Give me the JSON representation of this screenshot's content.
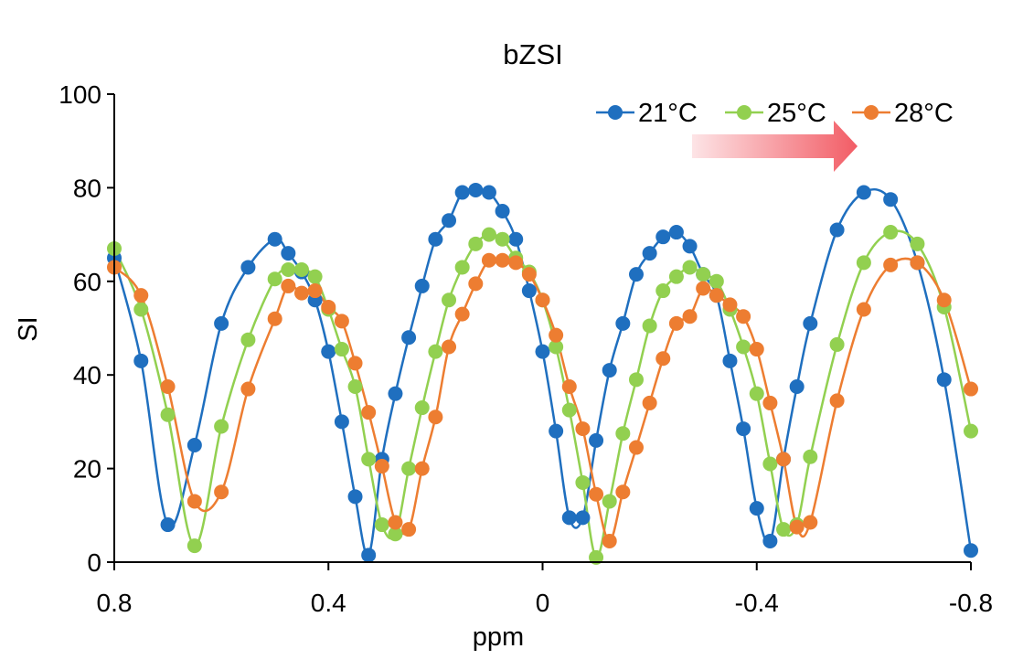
{
  "chart_data": {
    "type": "line",
    "title": "bZSI",
    "xlabel": "ppm",
    "ylabel": "SI",
    "xlim": [
      0.8,
      -0.8
    ],
    "ylim": [
      0,
      100
    ],
    "x_ticks": [
      "0.8",
      "0.4",
      "0",
      "-0.4",
      "-0.8"
    ],
    "y_ticks": [
      "0",
      "20",
      "40",
      "60",
      "80",
      "100"
    ],
    "x_reversed": true,
    "grid": false,
    "legend_position": "top-right",
    "annotation": "shift-arrow",
    "series": [
      {
        "name": "21°C",
        "color": "#1f6fbf",
        "x": [
          0.8,
          0.75,
          0.7,
          0.65,
          0.6,
          0.55,
          0.5,
          0.475,
          0.45,
          0.425,
          0.4,
          0.375,
          0.35,
          0.325,
          0.3,
          0.275,
          0.25,
          0.225,
          0.2,
          0.175,
          0.15,
          0.125,
          0.1,
          0.075,
          0.05,
          0.025,
          0.0,
          -0.025,
          -0.05,
          -0.075,
          -0.1,
          -0.125,
          -0.15,
          -0.175,
          -0.2,
          -0.225,
          -0.25,
          -0.275,
          -0.3,
          -0.325,
          -0.35,
          -0.375,
          -0.4,
          -0.425,
          -0.45,
          -0.475,
          -0.5,
          -0.55,
          -0.6,
          -0.65,
          -0.7,
          -0.75,
          -0.8
        ],
        "y": [
          65,
          43,
          8,
          25,
          51,
          63,
          69,
          66,
          62,
          56,
          45,
          30,
          14,
          1.5,
          22,
          36,
          48,
          59,
          69,
          73,
          79,
          79.5,
          79,
          75,
          69,
          58,
          45,
          28,
          9.5,
          9.5,
          26,
          41,
          51,
          61.5,
          66,
          69.5,
          70.5,
          67.5,
          61.5,
          57,
          43,
          28.5,
          11.5,
          4.5,
          22,
          37.5,
          51,
          71,
          79,
          77.5,
          64,
          39,
          2.5
        ]
      },
      {
        "name": "25°C",
        "color": "#92d050",
        "x": [
          0.8,
          0.75,
          0.7,
          0.65,
          0.6,
          0.55,
          0.5,
          0.475,
          0.45,
          0.425,
          0.4,
          0.375,
          0.35,
          0.325,
          0.3,
          0.275,
          0.25,
          0.225,
          0.2,
          0.175,
          0.15,
          0.125,
          0.1,
          0.075,
          0.05,
          0.025,
          0.0,
          -0.025,
          -0.05,
          -0.075,
          -0.1,
          -0.125,
          -0.15,
          -0.175,
          -0.2,
          -0.225,
          -0.25,
          -0.275,
          -0.3,
          -0.325,
          -0.35,
          -0.375,
          -0.4,
          -0.425,
          -0.45,
          -0.475,
          -0.5,
          -0.55,
          -0.6,
          -0.65,
          -0.7,
          -0.75,
          -0.8
        ],
        "y": [
          67,
          54,
          31.5,
          3.5,
          29,
          47.5,
          60.5,
          62.5,
          62.5,
          61,
          54,
          45.5,
          37.5,
          22,
          8,
          6,
          20,
          33,
          45,
          56,
          63,
          68,
          70,
          69,
          65,
          62,
          56,
          46,
          32.5,
          17,
          1,
          13,
          27.5,
          39,
          50.5,
          58,
          61,
          63,
          61.5,
          60,
          54,
          46,
          36,
          21,
          7,
          8,
          22.5,
          46.5,
          64,
          70.5,
          68,
          54.5,
          28
        ]
      },
      {
        "name": "28°C",
        "color": "#ed7d31",
        "x": [
          0.8,
          0.75,
          0.7,
          0.65,
          0.6,
          0.55,
          0.5,
          0.475,
          0.45,
          0.425,
          0.4,
          0.375,
          0.35,
          0.325,
          0.3,
          0.275,
          0.25,
          0.225,
          0.2,
          0.175,
          0.15,
          0.125,
          0.1,
          0.075,
          0.05,
          0.025,
          0.0,
          -0.025,
          -0.05,
          -0.075,
          -0.1,
          -0.125,
          -0.15,
          -0.175,
          -0.2,
          -0.225,
          -0.25,
          -0.275,
          -0.3,
          -0.325,
          -0.35,
          -0.375,
          -0.4,
          -0.425,
          -0.45,
          -0.475,
          -0.5,
          -0.55,
          -0.6,
          -0.65,
          -0.7,
          -0.75,
          -0.8
        ],
        "y": [
          63,
          57,
          37.5,
          13,
          15,
          37,
          52,
          59,
          57.5,
          58,
          54.5,
          51.5,
          42.5,
          32,
          20.5,
          8.5,
          7,
          20,
          31,
          46,
          53,
          59.5,
          64.5,
          64.5,
          64,
          61.5,
          56,
          48.5,
          37.5,
          28.5,
          14.5,
          4.5,
          15,
          24.5,
          34,
          43.5,
          51,
          52.5,
          58.5,
          57,
          55,
          52.5,
          45.5,
          34,
          22,
          7.5,
          8.5,
          34.5,
          54,
          63.5,
          64,
          56,
          37
        ]
      }
    ]
  }
}
